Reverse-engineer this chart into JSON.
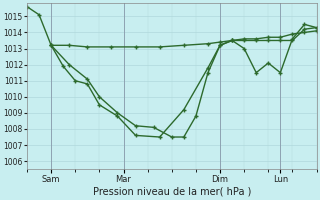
{
  "xlabel": "Pression niveau de la mer( hPa )",
  "bg_color": "#c8eef0",
  "grid_color": "#b0d8dc",
  "line_color": "#2d6a2d",
  "ylim": [
    1005.5,
    1015.8
  ],
  "yticks": [
    1006,
    1007,
    1008,
    1009,
    1010,
    1011,
    1012,
    1013,
    1014,
    1015
  ],
  "xlim": [
    0,
    96
  ],
  "day_positions": [
    8,
    32,
    64,
    84
  ],
  "day_labels": [
    "Sam",
    "Mar",
    "Dim",
    "Lun"
  ],
  "series1_x": [
    0,
    4,
    8,
    12,
    16,
    20,
    24,
    30,
    36,
    44,
    52,
    60,
    64,
    68,
    72,
    76,
    80,
    84,
    88,
    92,
    96
  ],
  "series1_y": [
    1015.6,
    1015.1,
    1013.2,
    1011.9,
    1011.0,
    1010.8,
    1009.5,
    1008.8,
    1007.6,
    1007.5,
    1009.2,
    1011.8,
    1013.2,
    1013.5,
    1013.5,
    1013.5,
    1013.5,
    1013.5,
    1013.5,
    1014.2,
    1014.3
  ],
  "series2_x": [
    8,
    14,
    20,
    28,
    36,
    44,
    52,
    60,
    64,
    68,
    72,
    76,
    80,
    84,
    88,
    92,
    96
  ],
  "series2_y": [
    1013.2,
    1013.2,
    1013.1,
    1013.1,
    1013.1,
    1013.1,
    1013.2,
    1013.3,
    1013.4,
    1013.5,
    1013.6,
    1013.6,
    1013.7,
    1013.7,
    1013.9,
    1014.0,
    1014.1
  ],
  "series3_x": [
    8,
    14,
    20,
    24,
    30,
    36,
    42,
    48,
    52,
    56,
    60,
    64,
    68,
    72,
    76,
    80,
    84,
    88,
    92,
    96
  ],
  "series3_y": [
    1013.2,
    1012.0,
    1011.1,
    1010.0,
    1009.0,
    1008.2,
    1008.1,
    1007.5,
    1007.5,
    1008.8,
    1011.5,
    1013.2,
    1013.5,
    1013.0,
    1011.5,
    1012.1,
    1011.5,
    1013.6,
    1014.5,
    1014.3
  ]
}
